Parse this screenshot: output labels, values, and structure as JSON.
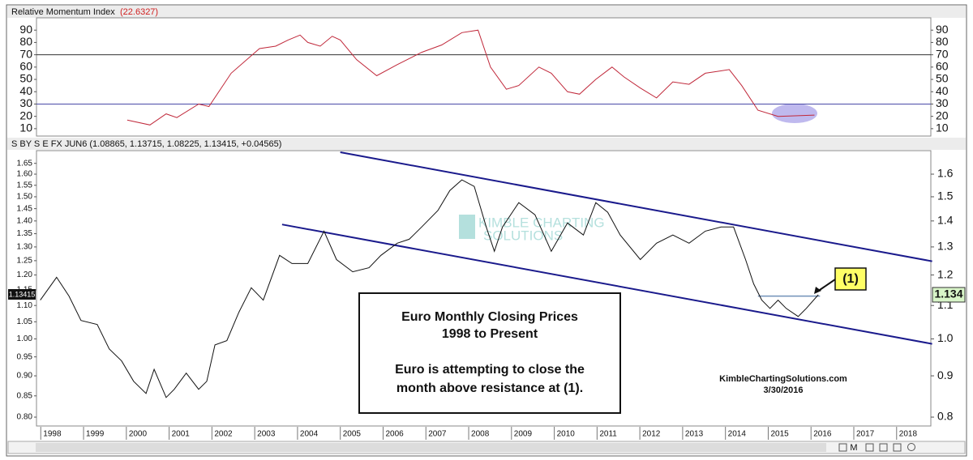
{
  "chart_data": [
    {
      "type": "line",
      "title": "Relative Momentum Index",
      "title_value": "(22.6327)",
      "color": "#c0283a",
      "x": [
        2000.02,
        2000.55,
        2000.93,
        2001.18,
        2001.69,
        2001.93,
        2002.45,
        2003.11,
        2003.49,
        2003.78,
        2004.06,
        2004.24,
        2004.53,
        2004.81,
        2005.0,
        2005.38,
        2005.85,
        2006.33,
        2006.9,
        2007.37,
        2007.84,
        2008.22,
        2008.51,
        2008.88,
        2009.17,
        2009.64,
        2009.93,
        2010.31,
        2010.59,
        2010.97,
        2011.35,
        2011.63,
        2012.01,
        2012.39,
        2012.77,
        2013.15,
        2013.53,
        2014.09,
        2014.38,
        2014.76,
        2015.23,
        2016.08
      ],
      "values": [
        17,
        13,
        22,
        19,
        30,
        28,
        55,
        75,
        77,
        82,
        86,
        80,
        77,
        85,
        82,
        66,
        53,
        62,
        72,
        78,
        88,
        90,
        60,
        42,
        45,
        60,
        55,
        40,
        38,
        50,
        60,
        52,
        43,
        35,
        48,
        46,
        55,
        58,
        45,
        25,
        20,
        21
      ],
      "xlim": [
        1997.9,
        2018.8
      ],
      "ylim": [
        4,
        100
      ],
      "yticks": [
        10,
        20,
        30,
        40,
        50,
        60,
        70,
        80,
        90
      ],
      "hlines": [
        {
          "value": 70,
          "color": "#333333"
        },
        {
          "value": 30,
          "color": "#4a4aa8"
        }
      ]
    },
    {
      "type": "line",
      "title": "S BY S E FX JUN6 (1.08865, 1.13715, 1.08225, 1.13415, +0.04565)",
      "color": "#111111",
      "log_scale": true,
      "x": [
        1997.99,
        1998.37,
        1998.66,
        1998.94,
        1999.32,
        1999.6,
        1999.89,
        2000.17,
        2000.46,
        2000.65,
        2000.93,
        2001.12,
        2001.4,
        2001.69,
        2001.88,
        2002.07,
        2002.35,
        2002.63,
        2002.92,
        2003.2,
        2003.58,
        2003.87,
        2004.24,
        2004.62,
        2004.91,
        2005.29,
        2005.67,
        2005.95,
        2006.33,
        2006.61,
        2006.9,
        2007.28,
        2007.56,
        2007.84,
        2008.13,
        2008.41,
        2008.6,
        2008.79,
        2009.17,
        2009.55,
        2009.93,
        2010.31,
        2010.68,
        2010.97,
        2011.25,
        2011.54,
        2012.01,
        2012.39,
        2012.77,
        2013.15,
        2013.53,
        2013.9,
        2014.19,
        2014.47,
        2014.66,
        2014.85,
        2015.04,
        2015.23,
        2015.42,
        2015.7,
        2015.89,
        2016.17
      ],
      "values": [
        1.117,
        1.192,
        1.13,
        1.054,
        1.042,
        0.972,
        0.939,
        0.886,
        0.856,
        0.917,
        0.846,
        0.866,
        0.907,
        0.866,
        0.886,
        0.983,
        0.995,
        1.079,
        1.157,
        1.117,
        1.269,
        1.24,
        1.24,
        1.36,
        1.254,
        1.211,
        1.225,
        1.269,
        1.314,
        1.329,
        1.376,
        1.442,
        1.527,
        1.574,
        1.545,
        1.376,
        1.284,
        1.376,
        1.475,
        1.425,
        1.284,
        1.392,
        1.345,
        1.475,
        1.435,
        1.345,
        1.254,
        1.314,
        1.345,
        1.314,
        1.36,
        1.376,
        1.376,
        1.254,
        1.17,
        1.117,
        1.091,
        1.117,
        1.091,
        1.066,
        1.091,
        1.13415
      ],
      "xlim": [
        1997.9,
        2018.8
      ],
      "ylim": [
        0.78,
        1.711
      ],
      "xticks": [
        1998,
        1999,
        2000,
        2001,
        2002,
        2003,
        2004,
        2005,
        2006,
        2007,
        2008,
        2009,
        2010,
        2011,
        2012,
        2013,
        2014,
        2015,
        2016,
        2017,
        2018
      ],
      "yticks": [
        {
          "value": 1.65,
          "label": "1.65"
        },
        {
          "value": 1.6,
          "label": "1.60"
        },
        {
          "value": 1.55,
          "label": "1.55"
        },
        {
          "value": 1.5,
          "label": "1.50"
        },
        {
          "value": 1.45,
          "label": "1.45"
        },
        {
          "value": 1.4,
          "label": "1.40"
        },
        {
          "value": 1.35,
          "label": "1.35"
        },
        {
          "value": 1.3,
          "label": "1.30"
        },
        {
          "value": 1.25,
          "label": "1.25"
        },
        {
          "value": 1.2,
          "label": "1.20"
        },
        {
          "value": 1.15,
          "label": "1.15"
        },
        {
          "value": 1.1,
          "label": "1.10"
        },
        {
          "value": 1.05,
          "label": "1.05"
        },
        {
          "value": 1,
          "label": "1.00"
        },
        {
          "value": 0.95,
          "label": "0.95"
        },
        {
          "value": 0.9,
          "label": "0.90"
        },
        {
          "value": 0.85,
          "label": "0.85"
        },
        {
          "value": 0.8,
          "label": "0.80"
        }
      ],
      "y2lim": [
        0.78,
        1.711
      ],
      "y2ticks": [
        1.6,
        1.5,
        1.4,
        1.3,
        1.2,
        1.1,
        {
          "value": 1,
          "label": "1.0"
        },
        0.9,
        0.8
      ],
      "price_tags": {
        "left": "1.13415",
        "right": "1.134"
      },
      "trendlines": [
        {
          "x": [
            2005.0,
            2018.83
          ],
          "values": [
            1.703,
            1.248
          ],
          "color": "#1a1a8c"
        },
        {
          "x": [
            2003.64,
            2018.83
          ],
          "values": [
            1.386,
            0.986
          ],
          "color": "#1a1a8c"
        },
        {
          "x": [
            2014.76,
            2016.21
          ],
          "values": [
            1.13,
            1.13
          ],
          "color": "#7090b8"
        }
      ],
      "annotations": {
        "box_lines": [
          "Euro Monthly Closing Prices",
          "1998 to Present",
          "Euro is attempting to close the",
          "month above resistance at (1)."
        ],
        "callout": "(1)",
        "credit": "KimbleChartingSolutions.com",
        "date": "3/30/2016",
        "watermark": [
          "KIMBLE CHARTING",
          "SOLUTIONS"
        ]
      }
    }
  ],
  "toolbar_label": "M"
}
